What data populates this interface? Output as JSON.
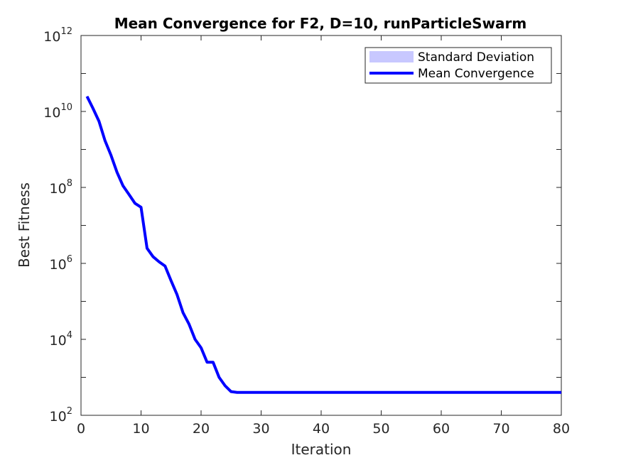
{
  "chart_data": {
    "type": "line",
    "title": "Mean Convergence for F2, D=10, runParticleSwarm",
    "xlabel": "Iteration",
    "ylabel": "Best Fitness",
    "xlim": [
      0,
      80
    ],
    "ylim": [
      100,
      1000000000000
    ],
    "yscale": "log",
    "grid": false,
    "legend_location": "top-right",
    "x_ticks": [
      "0",
      "10",
      "20",
      "30",
      "40",
      "50",
      "60",
      "70",
      "80"
    ],
    "y_ticks": [
      {
        "base": "10",
        "exp": "2"
      },
      {
        "base": "10",
        "exp": "4"
      },
      {
        "base": "10",
        "exp": "6"
      },
      {
        "base": "10",
        "exp": "8"
      },
      {
        "base": "10",
        "exp": "10"
      },
      {
        "base": "10",
        "exp": "12"
      }
    ],
    "series": [
      {
        "name": "Standard Deviation",
        "kind": "band",
        "color": "#c8c8ff",
        "x": [],
        "lower": [],
        "upper": []
      },
      {
        "name": "Mean Convergence",
        "kind": "line",
        "color": "#0000ff",
        "x": [
          1,
          2,
          3,
          4,
          5,
          6,
          7,
          8,
          9,
          10,
          11,
          12,
          13,
          14,
          15,
          16,
          17,
          18,
          19,
          20,
          21,
          22,
          23,
          24,
          25,
          26,
          27,
          28,
          29,
          30,
          31,
          32,
          33,
          34,
          35,
          36,
          37,
          38,
          39,
          40,
          41,
          42,
          43,
          44,
          45,
          46,
          47,
          48,
          49,
          50,
          51,
          52,
          53,
          54,
          55,
          56,
          57,
          58,
          59,
          60,
          61,
          62,
          63,
          64,
          65,
          66,
          67,
          68,
          69,
          70,
          71,
          72,
          73,
          74,
          75,
          76,
          77,
          78,
          79,
          80
        ],
        "y": [
          25000000000,
          12000000000,
          5500000000,
          1700000000,
          700000000,
          250000000,
          110000000,
          65000000,
          38000000,
          30000000,
          2500000,
          1500000,
          1100000,
          850000,
          350000,
          150000,
          50000,
          25000,
          10000,
          6000,
          2500,
          2500,
          1000,
          600,
          420,
          400,
          400,
          400,
          400,
          400,
          400,
          400,
          400,
          400,
          400,
          400,
          400,
          400,
          400,
          400,
          400,
          400,
          400,
          400,
          400,
          400,
          400,
          400,
          400,
          400,
          400,
          400,
          400,
          400,
          400,
          400,
          400,
          400,
          400,
          400,
          400,
          400,
          400,
          400,
          400,
          400,
          400,
          400,
          400,
          400,
          400,
          400,
          400,
          400,
          400,
          400,
          400,
          400,
          400,
          400
        ]
      }
    ]
  }
}
